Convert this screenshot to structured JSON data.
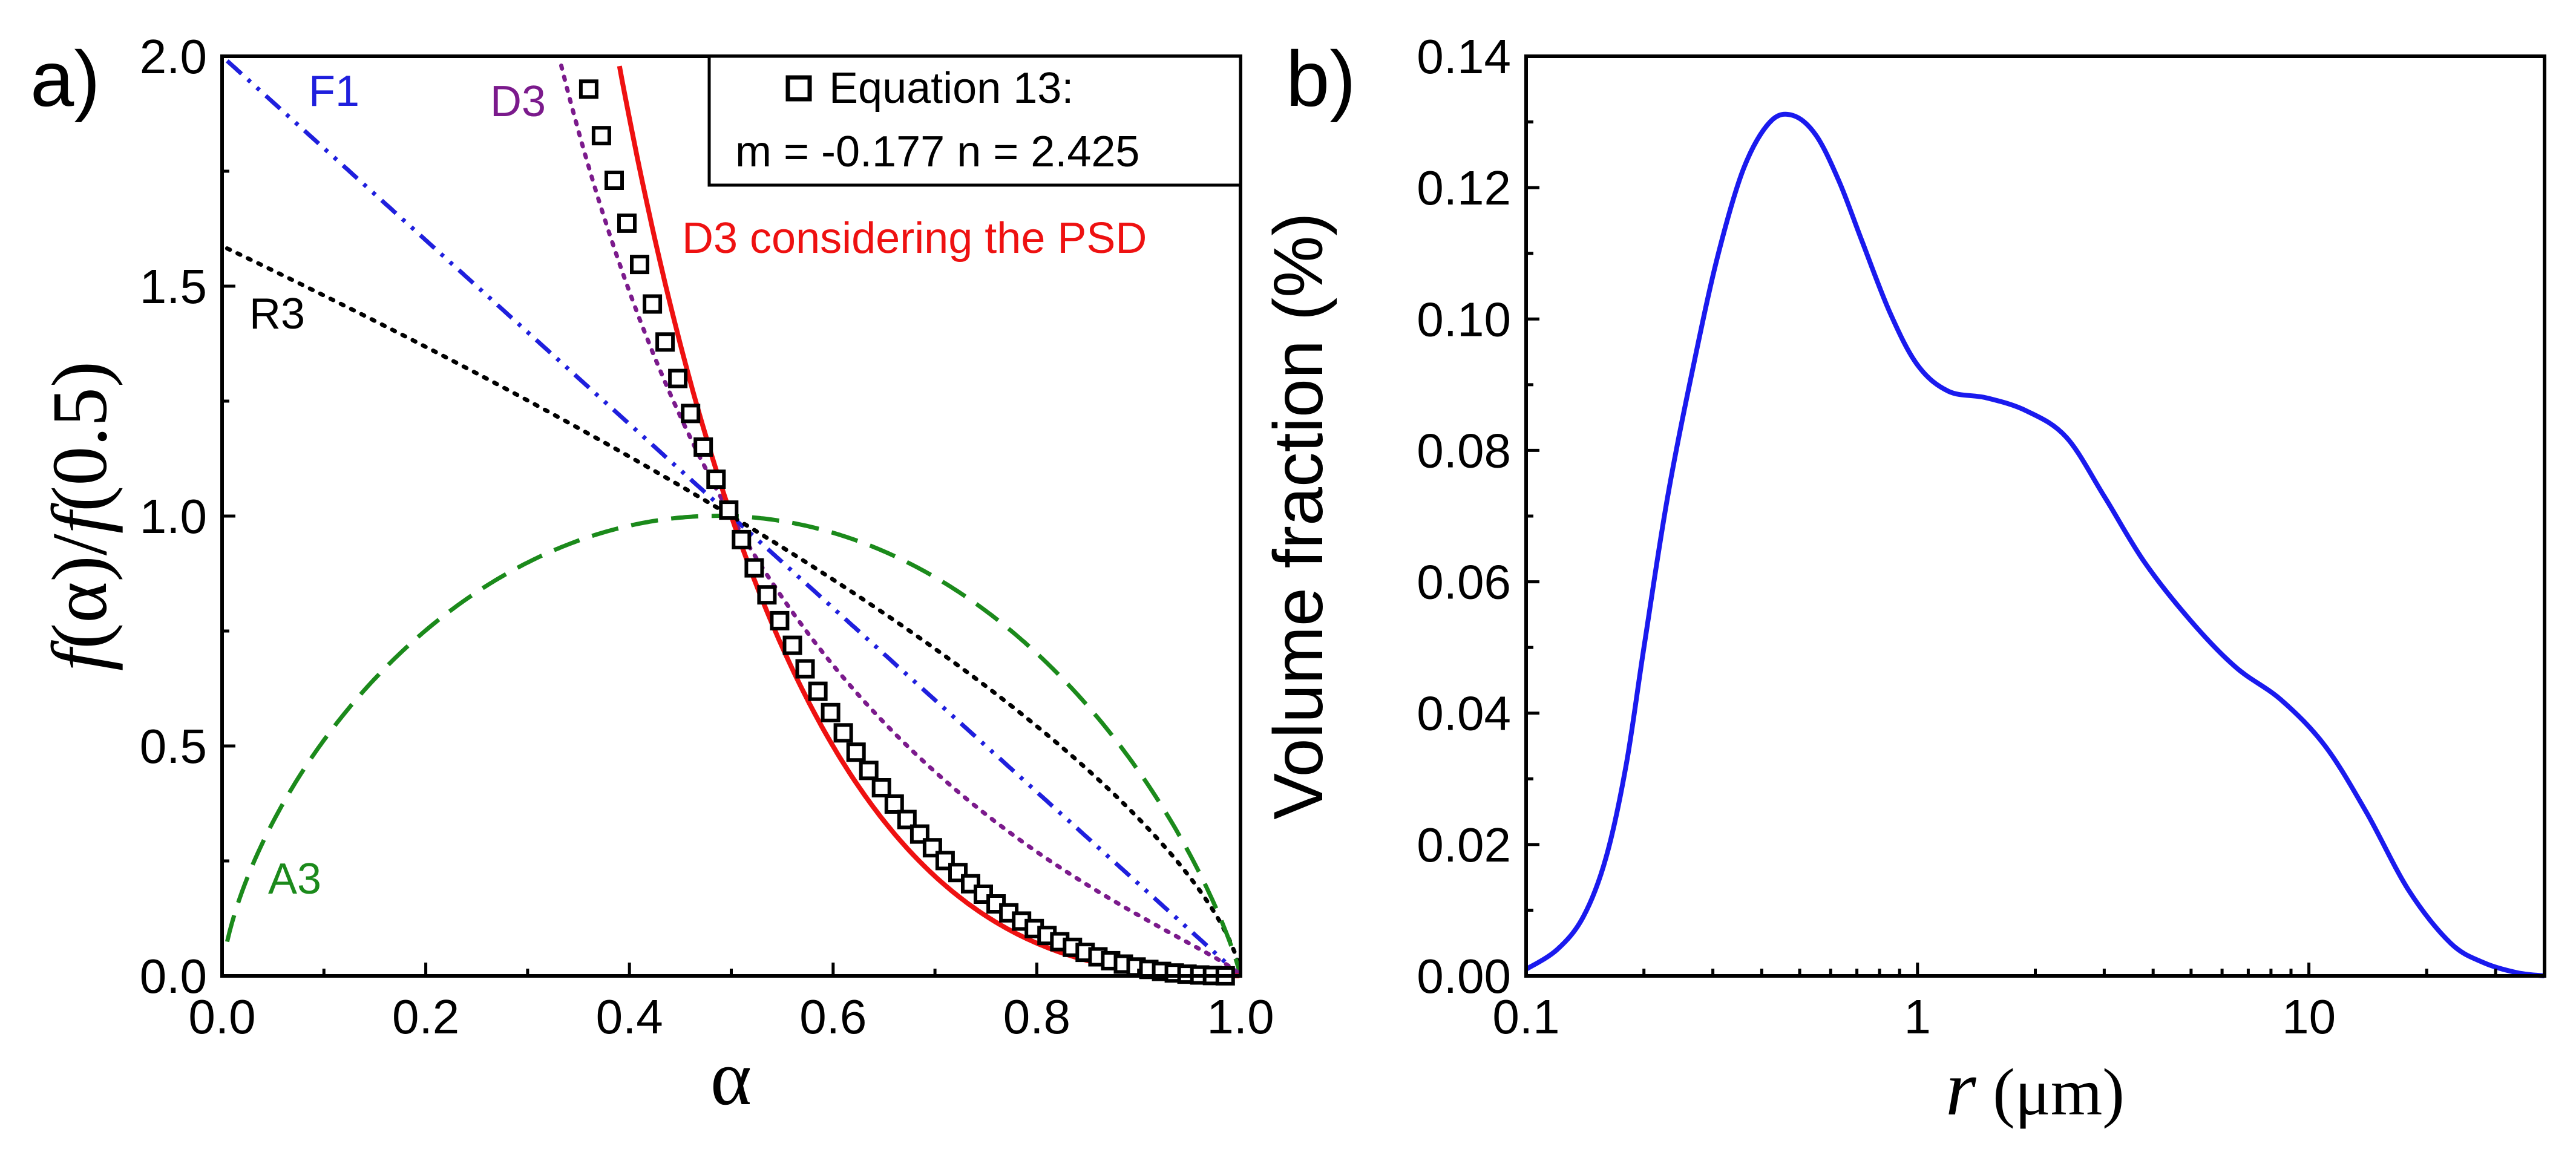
{
  "chart_data": [
    {
      "id": "a",
      "panel_label": "a)",
      "type": "line",
      "xlabel": "α",
      "ylabel_parts": [
        "f",
        "(α)/",
        "f",
        "(0.5)"
      ],
      "xlim": [
        0.0,
        1.0
      ],
      "ylim": [
        0.0,
        2.0
      ],
      "xticks": [
        0.0,
        0.2,
        0.4,
        0.6,
        0.8,
        1.0
      ],
      "xtick_labels": [
        "0.0",
        "0.2",
        "0.4",
        "0.6",
        "0.8",
        "1.0"
      ],
      "yticks": [
        0.0,
        0.5,
        1.0,
        1.5,
        2.0
      ],
      "ytick_labels": [
        "0.0",
        "0.5",
        "1.0",
        "1.5",
        "2.0"
      ],
      "legend": {
        "position": "top-right",
        "marker": "open-square",
        "line1": "Equation 13:",
        "line2": "m = -0.177 n = 2.425"
      },
      "series": [
        {
          "name": "F1",
          "label": "F1",
          "model": "F1",
          "style": "dashdotdot",
          "color": "#1f1fdd"
        },
        {
          "name": "R3",
          "label": "R3",
          "model": "R3",
          "style": "dotted",
          "color": "#000000"
        },
        {
          "name": "A3",
          "label": "A3",
          "model": "A3",
          "style": "dashed",
          "color": "#1b8a1b"
        },
        {
          "name": "D3",
          "label": "D3",
          "model": "D3",
          "style": "dotted",
          "color": "#7b1a8c"
        },
        {
          "name": "D3 considering the PSD",
          "label": "D3 considering the PSD",
          "model": "D3PSD",
          "style": "solid",
          "color": "#ee1111"
        },
        {
          "name": "Equation 13",
          "model": "EQ13",
          "style": "markers",
          "color": "#000000",
          "m": -0.177,
          "n": 2.425
        }
      ]
    },
    {
      "id": "b",
      "panel_label": "b)",
      "type": "line",
      "xlabel_italic": "r",
      "xlabel_unit": " (μm)",
      "ylabel": "Volume fraction (%)",
      "xscale": "log",
      "xlim": [
        0.1,
        40
      ],
      "ylim": [
        0.0,
        0.14
      ],
      "xticks": [
        0.1,
        1,
        10
      ],
      "xtick_labels": [
        "0.1",
        "1",
        "10"
      ],
      "yticks": [
        0.0,
        0.02,
        0.04,
        0.06,
        0.08,
        0.1,
        0.12,
        0.14
      ],
      "ytick_labels": [
        "0.00",
        "0.02",
        "0.04",
        "0.06",
        "0.08",
        "0.10",
        "0.12",
        "0.14"
      ],
      "series": [
        {
          "name": "PSD",
          "color": "#1a1aee",
          "x": [
            0.1,
            0.12,
            0.14,
            0.16,
            0.18,
            0.2,
            0.23,
            0.27,
            0.31,
            0.36,
            0.42,
            0.48,
            0.55,
            0.63,
            0.72,
            0.85,
            1.0,
            1.2,
            1.5,
            1.9,
            2.4,
            3.0,
            3.8,
            5.0,
            6.5,
            8.5,
            11.0,
            14.0,
            18.0,
            23.0,
            28.0,
            34.0,
            40.0
          ],
          "y": [
            0.001,
            0.004,
            0.009,
            0.018,
            0.032,
            0.05,
            0.073,
            0.094,
            0.11,
            0.123,
            0.13,
            0.131,
            0.128,
            0.121,
            0.112,
            0.101,
            0.093,
            0.089,
            0.088,
            0.086,
            0.082,
            0.073,
            0.063,
            0.054,
            0.047,
            0.042,
            0.035,
            0.025,
            0.013,
            0.005,
            0.002,
            0.0005,
            0.0
          ]
        }
      ]
    }
  ]
}
